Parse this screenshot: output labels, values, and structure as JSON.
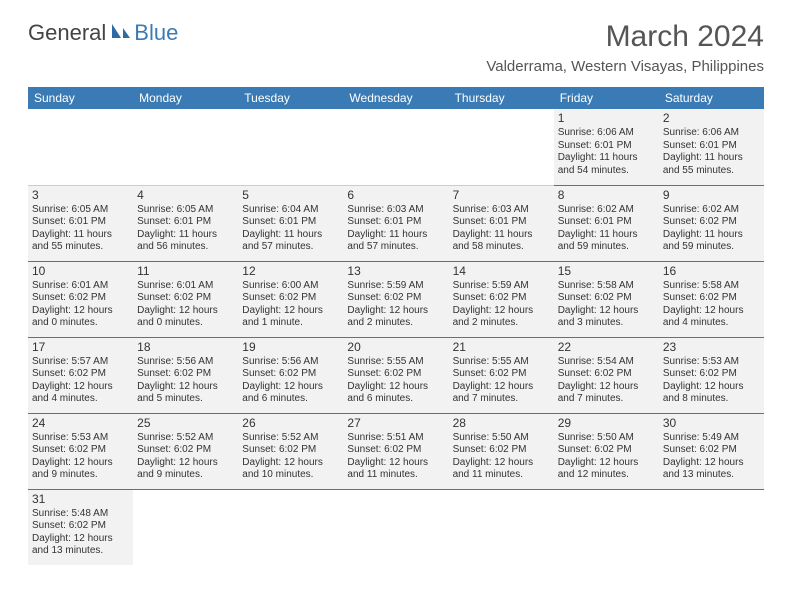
{
  "colors": {
    "header_bg": "#3b7bb5",
    "header_text": "#ffffff",
    "cell_bg": "#f2f2f2",
    "text": "#333333",
    "title": "#555555"
  },
  "logo": {
    "text1": "General",
    "text2": "Blue"
  },
  "title": "March 2024",
  "location": "Valderrama, Western Visayas, Philippines",
  "day_headers": [
    "Sunday",
    "Monday",
    "Tuesday",
    "Wednesday",
    "Thursday",
    "Friday",
    "Saturday"
  ],
  "weeks": [
    [
      null,
      null,
      null,
      null,
      null,
      {
        "n": "1",
        "sr": "Sunrise: 6:06 AM",
        "ss": "Sunset: 6:01 PM",
        "dl": "Daylight: 11 hours and 54 minutes."
      },
      {
        "n": "2",
        "sr": "Sunrise: 6:06 AM",
        "ss": "Sunset: 6:01 PM",
        "dl": "Daylight: 11 hours and 55 minutes."
      }
    ],
    [
      {
        "n": "3",
        "sr": "Sunrise: 6:05 AM",
        "ss": "Sunset: 6:01 PM",
        "dl": "Daylight: 11 hours and 55 minutes."
      },
      {
        "n": "4",
        "sr": "Sunrise: 6:05 AM",
        "ss": "Sunset: 6:01 PM",
        "dl": "Daylight: 11 hours and 56 minutes."
      },
      {
        "n": "5",
        "sr": "Sunrise: 6:04 AM",
        "ss": "Sunset: 6:01 PM",
        "dl": "Daylight: 11 hours and 57 minutes."
      },
      {
        "n": "6",
        "sr": "Sunrise: 6:03 AM",
        "ss": "Sunset: 6:01 PM",
        "dl": "Daylight: 11 hours and 57 minutes."
      },
      {
        "n": "7",
        "sr": "Sunrise: 6:03 AM",
        "ss": "Sunset: 6:01 PM",
        "dl": "Daylight: 11 hours and 58 minutes."
      },
      {
        "n": "8",
        "sr": "Sunrise: 6:02 AM",
        "ss": "Sunset: 6:01 PM",
        "dl": "Daylight: 11 hours and 59 minutes."
      },
      {
        "n": "9",
        "sr": "Sunrise: 6:02 AM",
        "ss": "Sunset: 6:02 PM",
        "dl": "Daylight: 11 hours and 59 minutes."
      }
    ],
    [
      {
        "n": "10",
        "sr": "Sunrise: 6:01 AM",
        "ss": "Sunset: 6:02 PM",
        "dl": "Daylight: 12 hours and 0 minutes."
      },
      {
        "n": "11",
        "sr": "Sunrise: 6:01 AM",
        "ss": "Sunset: 6:02 PM",
        "dl": "Daylight: 12 hours and 0 minutes."
      },
      {
        "n": "12",
        "sr": "Sunrise: 6:00 AM",
        "ss": "Sunset: 6:02 PM",
        "dl": "Daylight: 12 hours and 1 minute."
      },
      {
        "n": "13",
        "sr": "Sunrise: 5:59 AM",
        "ss": "Sunset: 6:02 PM",
        "dl": "Daylight: 12 hours and 2 minutes."
      },
      {
        "n": "14",
        "sr": "Sunrise: 5:59 AM",
        "ss": "Sunset: 6:02 PM",
        "dl": "Daylight: 12 hours and 2 minutes."
      },
      {
        "n": "15",
        "sr": "Sunrise: 5:58 AM",
        "ss": "Sunset: 6:02 PM",
        "dl": "Daylight: 12 hours and 3 minutes."
      },
      {
        "n": "16",
        "sr": "Sunrise: 5:58 AM",
        "ss": "Sunset: 6:02 PM",
        "dl": "Daylight: 12 hours and 4 minutes."
      }
    ],
    [
      {
        "n": "17",
        "sr": "Sunrise: 5:57 AM",
        "ss": "Sunset: 6:02 PM",
        "dl": "Daylight: 12 hours and 4 minutes."
      },
      {
        "n": "18",
        "sr": "Sunrise: 5:56 AM",
        "ss": "Sunset: 6:02 PM",
        "dl": "Daylight: 12 hours and 5 minutes."
      },
      {
        "n": "19",
        "sr": "Sunrise: 5:56 AM",
        "ss": "Sunset: 6:02 PM",
        "dl": "Daylight: 12 hours and 6 minutes."
      },
      {
        "n": "20",
        "sr": "Sunrise: 5:55 AM",
        "ss": "Sunset: 6:02 PM",
        "dl": "Daylight: 12 hours and 6 minutes."
      },
      {
        "n": "21",
        "sr": "Sunrise: 5:55 AM",
        "ss": "Sunset: 6:02 PM",
        "dl": "Daylight: 12 hours and 7 minutes."
      },
      {
        "n": "22",
        "sr": "Sunrise: 5:54 AM",
        "ss": "Sunset: 6:02 PM",
        "dl": "Daylight: 12 hours and 7 minutes."
      },
      {
        "n": "23",
        "sr": "Sunrise: 5:53 AM",
        "ss": "Sunset: 6:02 PM",
        "dl": "Daylight: 12 hours and 8 minutes."
      }
    ],
    [
      {
        "n": "24",
        "sr": "Sunrise: 5:53 AM",
        "ss": "Sunset: 6:02 PM",
        "dl": "Daylight: 12 hours and 9 minutes."
      },
      {
        "n": "25",
        "sr": "Sunrise: 5:52 AM",
        "ss": "Sunset: 6:02 PM",
        "dl": "Daylight: 12 hours and 9 minutes."
      },
      {
        "n": "26",
        "sr": "Sunrise: 5:52 AM",
        "ss": "Sunset: 6:02 PM",
        "dl": "Daylight: 12 hours and 10 minutes."
      },
      {
        "n": "27",
        "sr": "Sunrise: 5:51 AM",
        "ss": "Sunset: 6:02 PM",
        "dl": "Daylight: 12 hours and 11 minutes."
      },
      {
        "n": "28",
        "sr": "Sunrise: 5:50 AM",
        "ss": "Sunset: 6:02 PM",
        "dl": "Daylight: 12 hours and 11 minutes."
      },
      {
        "n": "29",
        "sr": "Sunrise: 5:50 AM",
        "ss": "Sunset: 6:02 PM",
        "dl": "Daylight: 12 hours and 12 minutes."
      },
      {
        "n": "30",
        "sr": "Sunrise: 5:49 AM",
        "ss": "Sunset: 6:02 PM",
        "dl": "Daylight: 12 hours and 13 minutes."
      }
    ],
    [
      {
        "n": "31",
        "sr": "Sunrise: 5:48 AM",
        "ss": "Sunset: 6:02 PM",
        "dl": "Daylight: 12 hours and 13 minutes."
      },
      null,
      null,
      null,
      null,
      null,
      null
    ]
  ]
}
